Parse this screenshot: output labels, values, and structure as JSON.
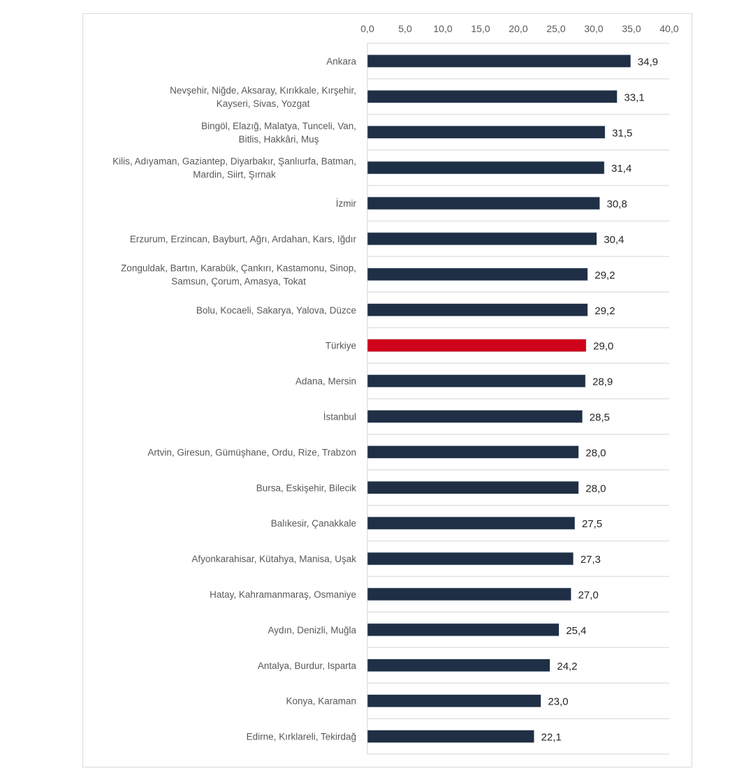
{
  "chart_data": {
    "type": "bar",
    "orientation": "horizontal",
    "title": "",
    "xlabel": "",
    "ylabel": "",
    "xlim": [
      0,
      40
    ],
    "x_ticks": [
      "0,0",
      "5,0",
      "10,0",
      "15,0",
      "20,0",
      "25,0",
      "30,0",
      "35,0",
      "40,0"
    ],
    "x_tick_values": [
      0,
      5,
      10,
      15,
      20,
      25,
      30,
      35,
      40
    ],
    "x_axis_position": "top",
    "grid": true,
    "legend": "none",
    "colors": {
      "default": "#1f2f45",
      "highlight": "#d0021b"
    },
    "categories": [
      [
        "Ankara"
      ],
      [
        "Nevşehir, Niğde, Aksaray, Kırıkkale, Kırşehir,",
        "Kayseri, Sivas, Yozgat"
      ],
      [
        "Bingöl, Elazığ, Malatya, Tunceli, Van,",
        "Bitlis, Hakkâri, Muş"
      ],
      [
        "Kilis, Adıyaman, Gaziantep, Diyarbakır, Şanlıurfa, Batman,",
        "Mardin, Siirt, Şırnak"
      ],
      [
        "İzmir"
      ],
      [
        "Erzurum, Erzincan, Bayburt, Ağrı, Ardahan, Kars, Iğdır"
      ],
      [
        "Zonguldak, Bartın, Karabük, Çankırı, Kastamonu, Sinop,",
        "Samsun, Çorum, Amasya, Tokat"
      ],
      [
        "Bolu, Kocaeli, Sakarya, Yalova, Düzce"
      ],
      [
        "Türkiye"
      ],
      [
        "Adana, Mersin"
      ],
      [
        "İstanbul"
      ],
      [
        "Artvin, Giresun, Gümüşhane, Ordu, Rize, Trabzon"
      ],
      [
        "Bursa, Eskişehir, Bilecik"
      ],
      [
        "Balıkesir, Çanakkale"
      ],
      [
        "Afyonkarahisar, Kütahya, Manisa, Uşak"
      ],
      [
        "Hatay, Kahramanmaraş, Osmaniye"
      ],
      [
        "Aydın, Denizli, Muğla"
      ],
      [
        "Antalya, Burdur, Isparta"
      ],
      [
        "Konya, Karaman"
      ],
      [
        "Edirne, Kırklareli, Tekirdağ"
      ]
    ],
    "values": [
      34.9,
      33.1,
      31.5,
      31.4,
      30.8,
      30.4,
      29.2,
      29.2,
      29.0,
      28.9,
      28.5,
      28.0,
      28.0,
      27.5,
      27.3,
      27.0,
      25.4,
      24.2,
      23.0,
      22.1
    ],
    "value_labels": [
      "34,9",
      "33,1",
      "31,5",
      "31,4",
      "30,8",
      "30,4",
      "29,2",
      "29,2",
      "29,0",
      "28,9",
      "28,5",
      "28,0",
      "28,0",
      "27,5",
      "27,3",
      "27,0",
      "25,4",
      "24,2",
      "23,0",
      "22,1"
    ],
    "highlight_index": 8
  }
}
